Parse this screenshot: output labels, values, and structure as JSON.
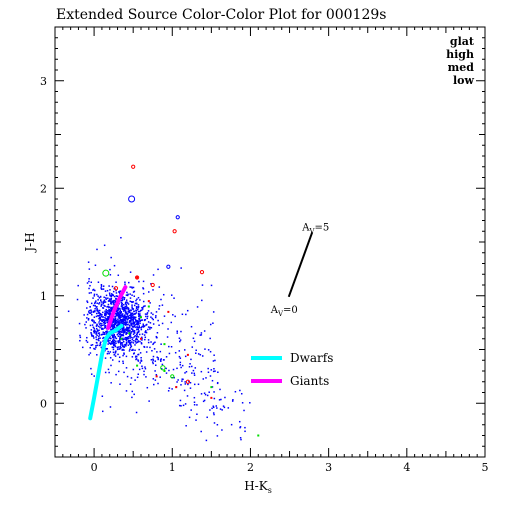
{
  "chart_data": {
    "type": "scatter",
    "title": "Extended Source Color-Color Plot for 000129s",
    "xlabel": "H-K",
    "xlabel_sub": "s",
    "ylabel": "J-H",
    "xlim": [
      -0.5,
      5
    ],
    "ylim": [
      -0.5,
      3.5
    ],
    "xticks": [
      "0",
      "1",
      "2",
      "3",
      "4",
      "5"
    ],
    "yticks": [
      "0",
      "1",
      "2",
      "3"
    ],
    "grid": false,
    "legend_position": "top-right",
    "legend": [
      {
        "label": "glat",
        "color": "#000000"
      },
      {
        "label": "high",
        "color": "#0000ff"
      },
      {
        "label": "med",
        "color": "#00dd00"
      },
      {
        "label": "low",
        "color": "#ff0000"
      }
    ],
    "reddening_vector": {
      "from": [
        2.49,
        0.99
      ],
      "to": [
        2.79,
        1.59
      ],
      "label_start": "A",
      "label_start_sub": "V",
      "label_start_rest": "=0",
      "label_end": "A",
      "label_end_sub": "V",
      "label_end_rest": "=5"
    },
    "loci": [
      {
        "name": "Dwarfs",
        "color": "#00ffff",
        "points": [
          [
            -0.05,
            -0.14
          ],
          [
            0.0,
            0.05
          ],
          [
            0.05,
            0.25
          ],
          [
            0.1,
            0.45
          ],
          [
            0.15,
            0.6
          ],
          [
            0.2,
            0.65
          ],
          [
            0.28,
            0.68
          ],
          [
            0.35,
            0.72
          ]
        ]
      },
      {
        "name": "Giants",
        "color": "#ff00ff",
        "points": [
          [
            0.18,
            0.7
          ],
          [
            0.25,
            0.85
          ],
          [
            0.32,
            0.97
          ],
          [
            0.4,
            1.08
          ]
        ]
      }
    ],
    "series": [
      {
        "name": "high",
        "color": "#0000ff",
        "cluster": {
          "center": [
            0.3,
            0.75
          ],
          "spread": [
            0.18,
            0.15
          ],
          "count": 1100
        },
        "halo": {
          "x_range": [
            -0.1,
            1.6
          ],
          "y_range": [
            0.0,
            1.5
          ],
          "count": 260
        },
        "tail": {
          "from": [
            0.4,
            0.6
          ],
          "to": [
            1.9,
            -0.2
          ],
          "count": 140
        }
      },
      {
        "name": "med",
        "color": "#00dd00",
        "points": [
          [
            0.45,
            0.65
          ],
          [
            0.6,
            0.8
          ],
          [
            0.7,
            0.9
          ],
          [
            0.9,
            0.55
          ],
          [
            0.55,
            0.35
          ],
          [
            0.9,
            0.3
          ],
          [
            1.5,
            0.15
          ],
          [
            2.1,
            -0.3
          ],
          [
            0.35,
            0.6
          ]
        ]
      },
      {
        "name": "low",
        "color": "#ff0000",
        "points": [
          [
            0.55,
            1.17
          ],
          [
            0.7,
            0.95
          ],
          [
            0.95,
            0.85
          ],
          [
            1.2,
            0.45
          ],
          [
            1.5,
            0.05
          ],
          [
            0.8,
            0.25
          ],
          [
            1.05,
            0.15
          ],
          [
            0.6,
            0.6
          ]
        ]
      }
    ],
    "circles": [
      {
        "x": 0.5,
        "y": 2.2,
        "color": "#ff0000",
        "size": "s"
      },
      {
        "x": 0.48,
        "y": 1.9,
        "color": "#0000ff",
        "size": "l"
      },
      {
        "x": 1.07,
        "y": 1.73,
        "color": "#0000ff",
        "size": "s"
      },
      {
        "x": 1.03,
        "y": 1.6,
        "color": "#ff0000",
        "size": "s"
      },
      {
        "x": 0.15,
        "y": 1.21,
        "color": "#00dd00",
        "size": "l"
      },
      {
        "x": 0.55,
        "y": 1.17,
        "color": "#ff0000",
        "size": "s"
      },
      {
        "x": 0.95,
        "y": 1.27,
        "color": "#0000ff",
        "size": "s"
      },
      {
        "x": 1.38,
        "y": 1.22,
        "color": "#ff0000",
        "size": "s"
      },
      {
        "x": 0.28,
        "y": 1.07,
        "color": "#ff0000",
        "size": "s"
      },
      {
        "x": 0.75,
        "y": 1.1,
        "color": "#ff0000",
        "size": "s"
      },
      {
        "x": -0.05,
        "y": 0.85,
        "color": "#0000ff",
        "size": "s"
      },
      {
        "x": 0.1,
        "y": 0.75,
        "color": "#0000ff",
        "size": "l"
      },
      {
        "x": 0.3,
        "y": 0.72,
        "color": "#0000ff",
        "size": "l"
      },
      {
        "x": 0.35,
        "y": 0.8,
        "color": "#0000ff",
        "size": "m"
      },
      {
        "x": 0.55,
        "y": 0.72,
        "color": "#0000ff",
        "size": "m"
      },
      {
        "x": 0.88,
        "y": 0.33,
        "color": "#00dd00",
        "size": "m"
      },
      {
        "x": 1.0,
        "y": 0.25,
        "color": "#00dd00",
        "size": "s"
      },
      {
        "x": 1.2,
        "y": 0.2,
        "color": "#ff0000",
        "size": "s"
      }
    ]
  }
}
